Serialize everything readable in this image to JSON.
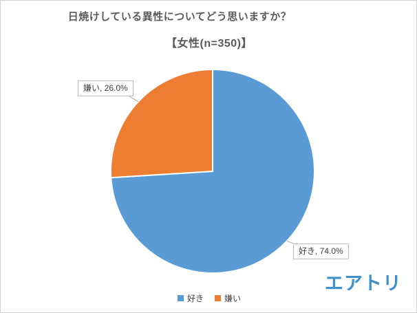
{
  "header": {
    "title": "日焼けしている異性についてどう思いますか？",
    "subtitle": "【女性(n=350)】"
  },
  "chart_data": {
    "type": "pie",
    "title": "日焼けしている異性についてどう思いますか？",
    "subtitle": "【女性(n=350)】",
    "categories": [
      "好き",
      "嫌い"
    ],
    "values": [
      74.0,
      26.0
    ],
    "unit": "percent",
    "colors": [
      "#5B9BD5",
      "#ED7D31"
    ],
    "slice_border_color": "#FFFFFF",
    "data_labels": [
      "好き, 74.0%",
      "嫌い, 26.0%"
    ],
    "start_angle_deg": 0,
    "direction": "clockwise",
    "legend_position": "bottom"
  },
  "labels": {
    "like": "好き, 74.0%",
    "dislike": "嫌い, 26.0%"
  },
  "legend": {
    "items": [
      {
        "label": "好き",
        "color": "#5B9BD5"
      },
      {
        "label": "嫌い",
        "color": "#ED7D31"
      }
    ]
  },
  "branding": {
    "logo_text": "エアトリ",
    "logo_color": "#3E90C9"
  }
}
